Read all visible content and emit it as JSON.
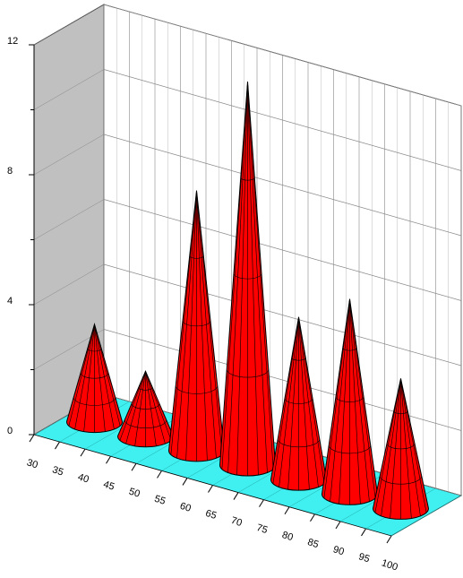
{
  "chart_data": {
    "type": "cone",
    "x": [
      35,
      45,
      55,
      65,
      75,
      85,
      95
    ],
    "values": [
      3,
      2,
      8,
      11.8,
      5,
      6,
      4
    ],
    "color": "#ff0000",
    "floor_color": "#40f0f0",
    "wall_color": "#c0c0c0",
    "xlim": [
      30,
      100
    ],
    "xticks": [
      30,
      35,
      40,
      45,
      50,
      55,
      60,
      65,
      70,
      75,
      80,
      85,
      90,
      95,
      100
    ],
    "ylim": [
      0,
      12
    ],
    "yticks": [
      0,
      4,
      8,
      12
    ],
    "grid": true
  }
}
